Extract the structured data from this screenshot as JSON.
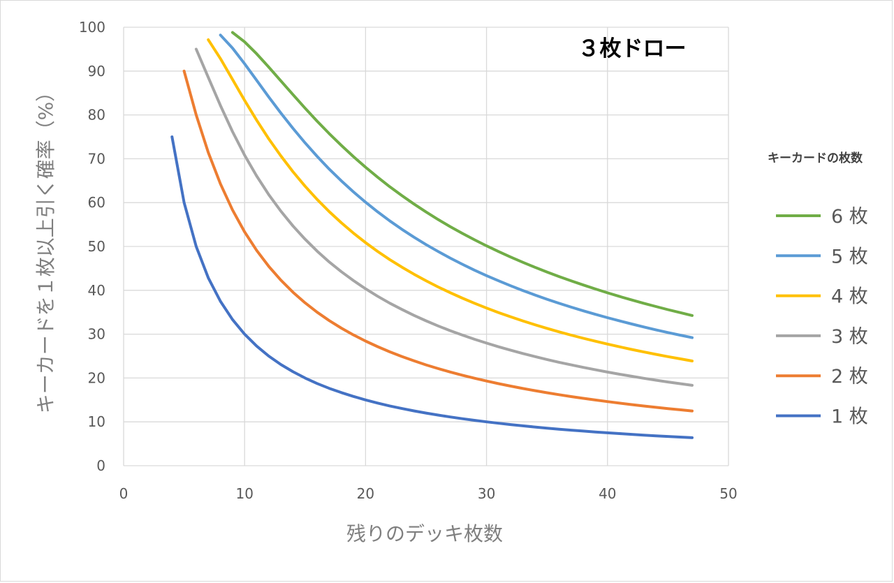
{
  "chart_data": {
    "type": "line",
    "title": "３枚ドロー",
    "xlabel": "残りのデッキ枚数",
    "ylabel": "キーカードを１枚以上引く確率（%）",
    "xlim": [
      0,
      50
    ],
    "ylim": [
      0,
      100
    ],
    "xticks": [
      0,
      10,
      20,
      30,
      40,
      50
    ],
    "yticks": [
      0,
      10,
      20,
      30,
      40,
      50,
      60,
      70,
      80,
      90,
      100
    ],
    "grid": true,
    "legend_title": "キーカードの枚数",
    "legend_position": "right",
    "series": [
      {
        "name": "6 枚",
        "color": "#70ad47",
        "draws": 3,
        "k": 6,
        "x_start": 9,
        "x_end": 47
      },
      {
        "name": "5 枚",
        "color": "#5b9bd5",
        "draws": 3,
        "k": 5,
        "x_start": 8,
        "x_end": 47
      },
      {
        "name": "4 枚",
        "color": "#ffc000",
        "draws": 3,
        "k": 4,
        "x_start": 7,
        "x_end": 47
      },
      {
        "name": "3 枚",
        "color": "#a5a5a5",
        "draws": 3,
        "k": 3,
        "x_start": 6,
        "x_end": 47
      },
      {
        "name": "2 枚",
        "color": "#ed7d31",
        "draws": 3,
        "k": 2,
        "x_start": 5,
        "x_end": 47
      },
      {
        "name": "1 枚",
        "color": "#4472c4",
        "draws": 3,
        "k": 1,
        "x_start": 4,
        "x_end": 47
      }
    ]
  }
}
